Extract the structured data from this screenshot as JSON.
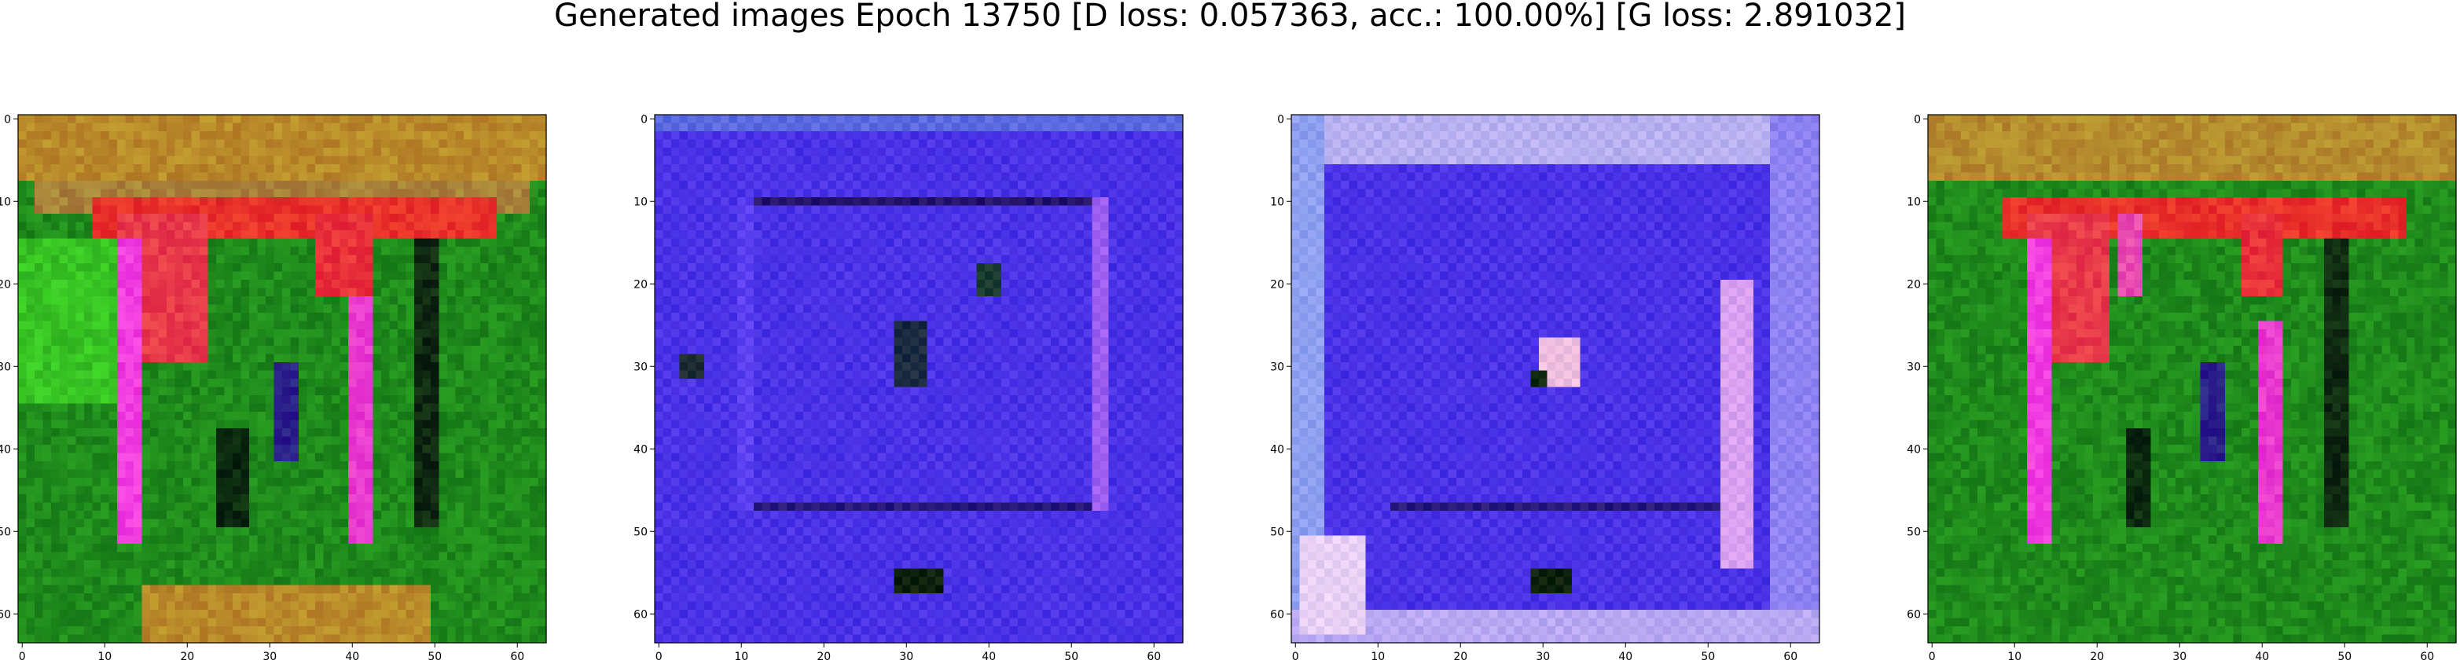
{
  "figure": {
    "suptitle": "Generated images Epoch 13750 [D loss: 0.057363, acc.: 100.00%] [G loss: 2.891032]"
  },
  "chart_data": [
    {
      "type": "heatmap",
      "xlim": [
        -0.5,
        63.5
      ],
      "ylim": [
        63.5,
        -0.5
      ],
      "xticks": [
        0,
        10,
        20,
        30,
        40,
        50,
        60
      ],
      "yticks": [
        0,
        10,
        20,
        30,
        40,
        50,
        60
      ],
      "grid": false,
      "image": {
        "size": [
          64,
          64
        ],
        "style": "green-orange",
        "background": "#1f8a1c",
        "features": [
          {
            "kind": "band",
            "x": [
              0,
              64
            ],
            "y": [
              0,
              8
            ],
            "color": "#b98a2a"
          },
          {
            "kind": "band",
            "x": [
              2,
              62
            ],
            "y": [
              8,
              12
            ],
            "color": "#a8823a"
          },
          {
            "kind": "band",
            "x": [
              9,
              58
            ],
            "y": [
              10,
              15
            ],
            "color": "#e8302a"
          },
          {
            "kind": "band",
            "x": [
              0,
              12
            ],
            "y": [
              15,
              35
            ],
            "color": "#38c424"
          },
          {
            "kind": "band",
            "x": [
              12,
              23
            ],
            "y": [
              12,
              30
            ],
            "color": "#e83a4a"
          },
          {
            "kind": "band",
            "x": [
              12,
              15
            ],
            "y": [
              15,
              52
            ],
            "color": "#f03ce0"
          },
          {
            "kind": "band",
            "x": [
              36,
              43
            ],
            "y": [
              12,
              22
            ],
            "color": "#e8303a"
          },
          {
            "kind": "band",
            "x": [
              40,
              43
            ],
            "y": [
              22,
              52
            ],
            "color": "#e83ad0"
          },
          {
            "kind": "band",
            "x": [
              24,
              28
            ],
            "y": [
              38,
              50
            ],
            "color": "#0c2a10"
          },
          {
            "kind": "band",
            "x": [
              31,
              34
            ],
            "y": [
              30,
              42
            ],
            "color": "#2a1e8a"
          },
          {
            "kind": "band",
            "x": [
              48,
              51
            ],
            "y": [
              15,
              50
            ],
            "color": "#102a12"
          },
          {
            "kind": "band",
            "x": [
              15,
              50
            ],
            "y": [
              57,
              64
            ],
            "color": "#b98a2a"
          }
        ]
      }
    },
    {
      "type": "heatmap",
      "xlim": [
        -0.5,
        63.5
      ],
      "ylim": [
        63.5,
        -0.5
      ],
      "xticks": [
        0,
        10,
        20,
        30,
        40,
        50,
        60
      ],
      "yticks": [
        0,
        10,
        20,
        30,
        40,
        50,
        60
      ],
      "grid": false,
      "image": {
        "size": [
          64,
          64
        ],
        "style": "blue-checker",
        "background": "#4a32e6",
        "features": [
          {
            "kind": "band",
            "x": [
              0,
              64
            ],
            "y": [
              0,
              2
            ],
            "color": "#5a6ae0"
          },
          {
            "kind": "band",
            "x": [
              10,
              55
            ],
            "y": [
              10,
              11
            ],
            "color": "#24146a"
          },
          {
            "kind": "band",
            "x": [
              10,
              55
            ],
            "y": [
              47,
              48
            ],
            "color": "#26177a"
          },
          {
            "kind": "band",
            "x": [
              10,
              12
            ],
            "y": [
              10,
              48
            ],
            "color": "#5b40f0"
          },
          {
            "kind": "band",
            "x": [
              53,
              55
            ],
            "y": [
              10,
              48
            ],
            "color": "#9c5ef0"
          },
          {
            "kind": "band",
            "x": [
              29,
              33
            ],
            "y": [
              25,
              33
            ],
            "color": "#1a2a40"
          },
          {
            "kind": "band",
            "x": [
              39,
              42
            ],
            "y": [
              18,
              22
            ],
            "color": "#1a3a30"
          },
          {
            "kind": "band",
            "x": [
              3,
              6
            ],
            "y": [
              29,
              32
            ],
            "color": "#1a2a30"
          },
          {
            "kind": "band",
            "x": [
              29,
              35
            ],
            "y": [
              55,
              58
            ],
            "color": "#0c200c"
          }
        ]
      }
    },
    {
      "type": "heatmap",
      "xlim": [
        -0.5,
        63.5
      ],
      "ylim": [
        63.5,
        -0.5
      ],
      "xticks": [
        0,
        10,
        20,
        30,
        40,
        50,
        60
      ],
      "yticks": [
        0,
        10,
        20,
        30,
        40,
        50,
        60
      ],
      "grid": false,
      "image": {
        "size": [
          64,
          64
        ],
        "style": "blue-checker",
        "background": "#4a32e6",
        "features": [
          {
            "kind": "band",
            "x": [
              0,
              64
            ],
            "y": [
              0,
              6
            ],
            "color": "#b8b0f0"
          },
          {
            "kind": "band",
            "x": [
              0,
              4
            ],
            "y": [
              0,
              64
            ],
            "color": "#8fa0f0"
          },
          {
            "kind": "band",
            "x": [
              58,
              64
            ],
            "y": [
              0,
              64
            ],
            "color": "#8e82f2"
          },
          {
            "kind": "band",
            "x": [
              0,
              64
            ],
            "y": [
              60,
              64
            ],
            "color": "#b8a8f2"
          },
          {
            "kind": "band",
            "x": [
              1,
              9
            ],
            "y": [
              51,
              63
            ],
            "color": "#e8d0f4"
          },
          {
            "kind": "band",
            "x": [
              12,
              55
            ],
            "y": [
              47,
              48
            ],
            "color": "#26177a"
          },
          {
            "kind": "band",
            "x": [
              52,
              56
            ],
            "y": [
              20,
              55
            ],
            "color": "#d8a0f0"
          },
          {
            "kind": "band",
            "x": [
              30,
              35
            ],
            "y": [
              27,
              33
            ],
            "color": "#f0c0e0"
          },
          {
            "kind": "band",
            "x": [
              29,
              31
            ],
            "y": [
              31,
              33
            ],
            "color": "#102a10"
          },
          {
            "kind": "band",
            "x": [
              29,
              34
            ],
            "y": [
              55,
              58
            ],
            "color": "#0c200c"
          }
        ]
      }
    },
    {
      "type": "heatmap",
      "xlim": [
        -0.5,
        63.5
      ],
      "ylim": [
        63.5,
        -0.5
      ],
      "xticks": [
        0,
        10,
        20,
        30,
        40,
        50,
        60
      ],
      "yticks": [
        0,
        10,
        20,
        30,
        40,
        50,
        60
      ],
      "grid": false,
      "image": {
        "size": [
          64,
          64
        ],
        "style": "green-orange",
        "background": "#1f8a1c",
        "features": [
          {
            "kind": "band",
            "x": [
              0,
              64
            ],
            "y": [
              0,
              8
            ],
            "color": "#b58c2e"
          },
          {
            "kind": "band",
            "x": [
              9,
              58
            ],
            "y": [
              10,
              15
            ],
            "color": "#e8302a"
          },
          {
            "kind": "band",
            "x": [
              12,
              22
            ],
            "y": [
              12,
              30
            ],
            "color": "#e83a4a"
          },
          {
            "kind": "band",
            "x": [
              12,
              15
            ],
            "y": [
              15,
              52
            ],
            "color": "#f03ce0"
          },
          {
            "kind": "band",
            "x": [
              23,
              26
            ],
            "y": [
              12,
              22
            ],
            "color": "#e84ab0"
          },
          {
            "kind": "band",
            "x": [
              38,
              43
            ],
            "y": [
              12,
              22
            ],
            "color": "#e8303a"
          },
          {
            "kind": "band",
            "x": [
              40,
              43
            ],
            "y": [
              25,
              52
            ],
            "color": "#e83ad0"
          },
          {
            "kind": "band",
            "x": [
              24,
              27
            ],
            "y": [
              38,
              50
            ],
            "color": "#0c2a10"
          },
          {
            "kind": "band",
            "x": [
              33,
              36
            ],
            "y": [
              30,
              42
            ],
            "color": "#2a1e8a"
          },
          {
            "kind": "band",
            "x": [
              48,
              51
            ],
            "y": [
              15,
              50
            ],
            "color": "#102a12"
          }
        ]
      }
    }
  ]
}
